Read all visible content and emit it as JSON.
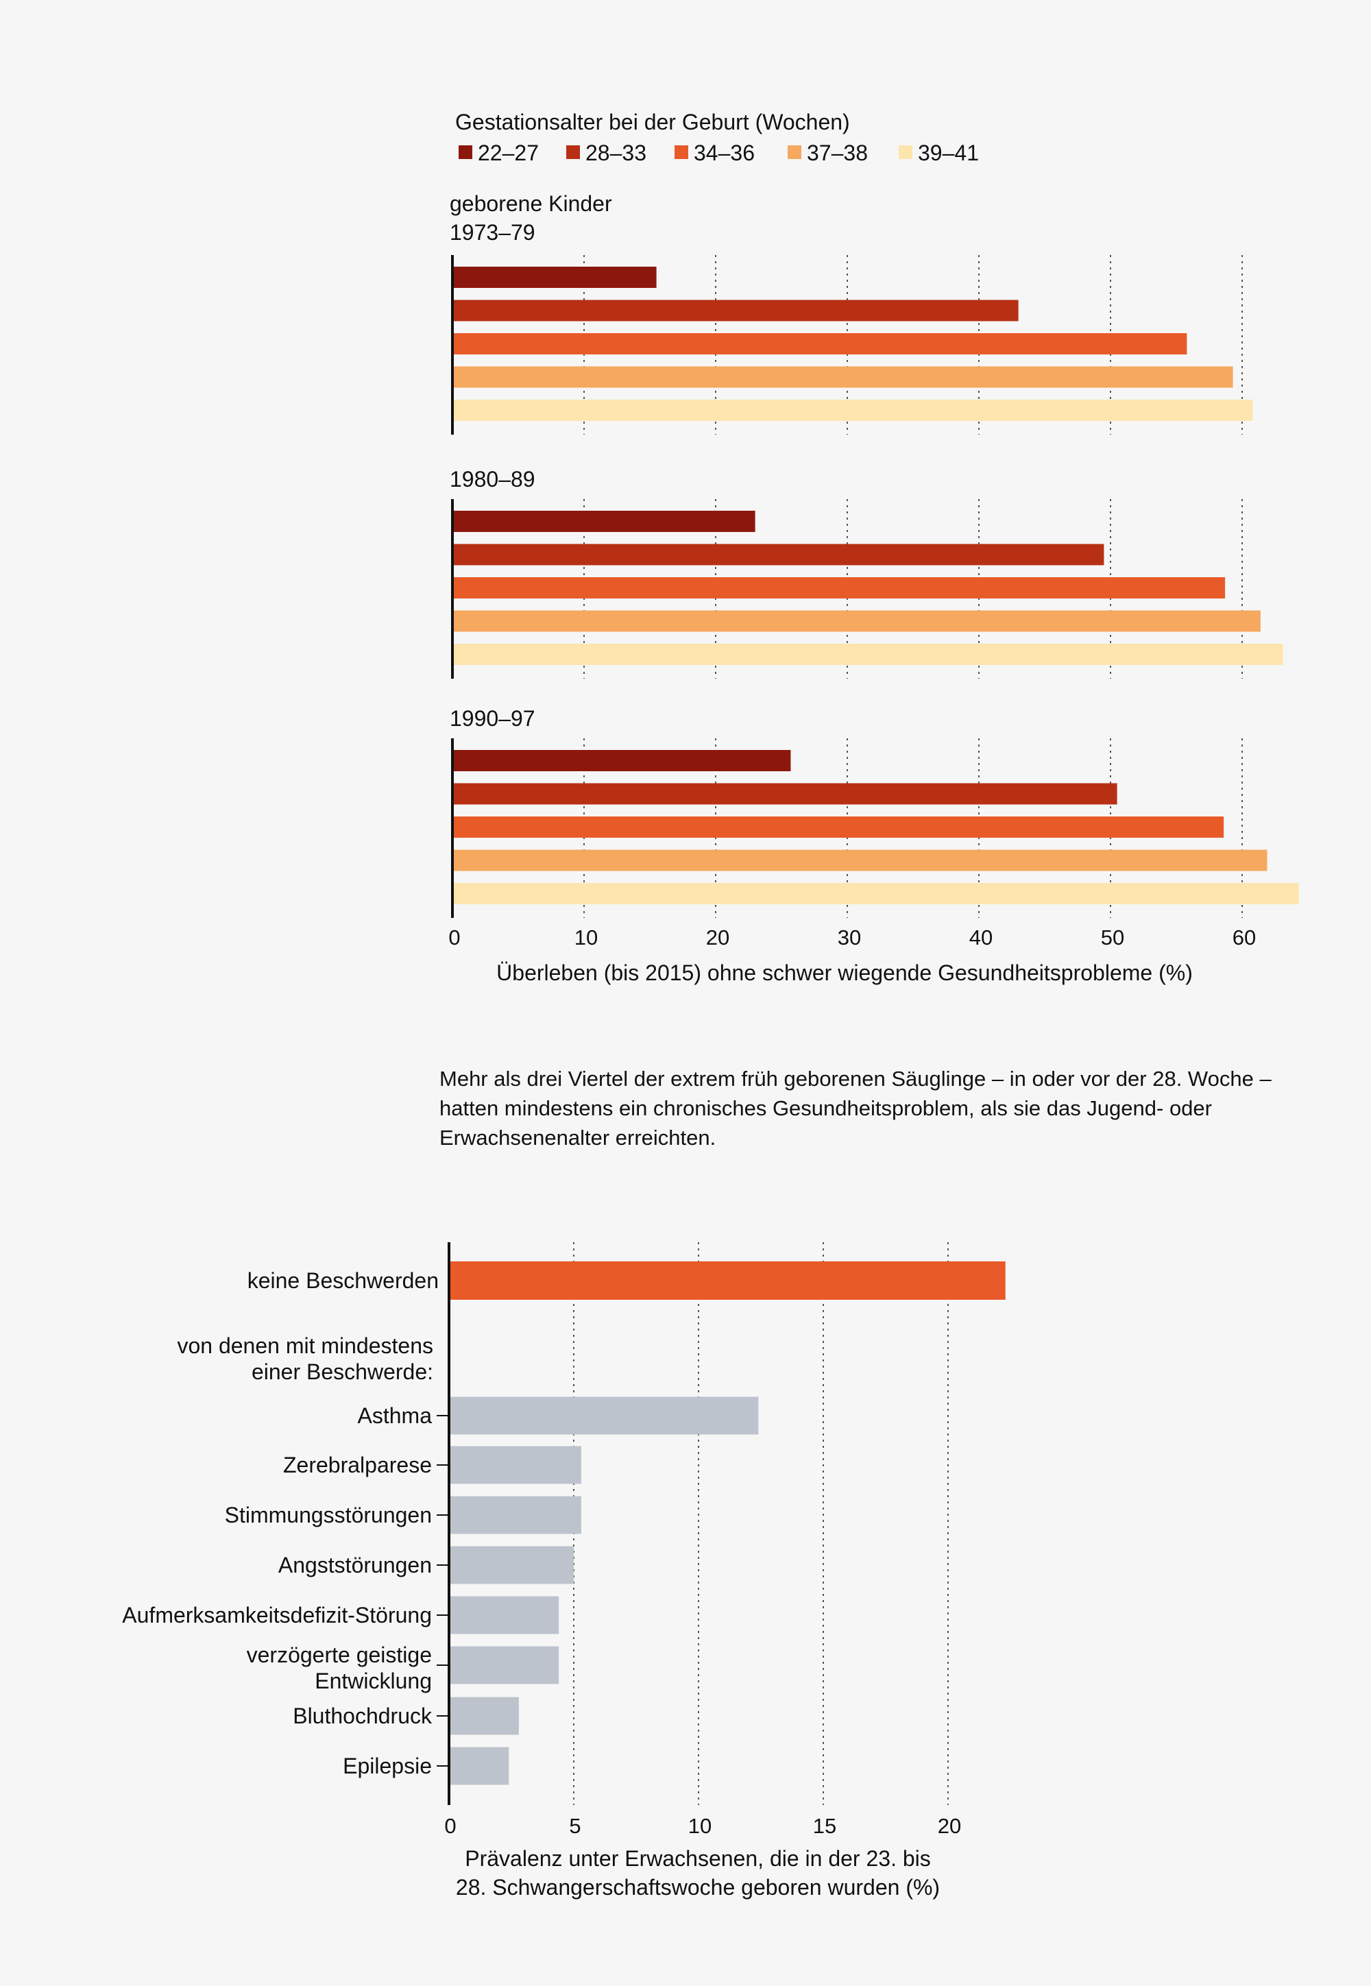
{
  "chart_data": [
    {
      "type": "bar",
      "orientation": "horizontal",
      "title": "",
      "legend_title": "Gestationsalter bei der Geburt (Wochen)",
      "legend_position": "top-left",
      "series": [
        {
          "name": "22–27",
          "color": "#8c170c"
        },
        {
          "name": "28–33",
          "color": "#b83014"
        },
        {
          "name": "34–36",
          "color": "#e85a28"
        },
        {
          "name": "37–38",
          "color": "#f6a85f"
        },
        {
          "name": "39–41",
          "color": "#fde5ad"
        }
      ],
      "panel_caption": "geborene Kinder",
      "panels": [
        {
          "label": "1973–79",
          "values": [
            15.5,
            43.0,
            55.8,
            59.3,
            60.8
          ]
        },
        {
          "label": "1980–89",
          "values": [
            23.0,
            49.5,
            58.7,
            61.4,
            63.1
          ]
        },
        {
          "label": "1990–97",
          "values": [
            25.7,
            50.5,
            58.6,
            61.9,
            64.3
          ]
        }
      ],
      "xlabel": "Überleben (bis 2015) ohne schwer wiegende Gesundheitsprobleme (%)",
      "ylabel": "",
      "xlim": [
        0,
        64.5
      ],
      "xticks": [
        0,
        10,
        20,
        30,
        40,
        50,
        60
      ],
      "grid": "dotted vertical"
    },
    {
      "type": "bar",
      "orientation": "horizontal",
      "title": "",
      "categories": [
        "keine Beschwerden",
        "Asthma",
        "Zerebralparese",
        "Stimmungsstörungen",
        "Angststörungen",
        "Aufmerksamkeitsdefizit-Störung",
        "verzögerte geistige Entwicklung",
        "Bluthochdruck",
        "Epilepsie"
      ],
      "category_lines": [
        [
          "keine Beschwerden"
        ],
        [
          "Asthma"
        ],
        [
          "Zerebralparese"
        ],
        [
          "Stimmungsstörungen"
        ],
        [
          "Angststörungen"
        ],
        [
          "Aufmerksamkeitsdefizit-Störung"
        ],
        [
          "verzögerte geistige",
          "Entwicklung"
        ],
        [
          "Bluthochdruck"
        ],
        [
          "Epilepsie"
        ]
      ],
      "values": [
        22.3,
        12.4,
        5.3,
        5.3,
        5.0,
        4.4,
        4.4,
        2.8,
        2.4
      ],
      "bar_colors": [
        "#e85a28",
        "#bdc3cc",
        "#bdc3cc",
        "#bdc3cc",
        "#bdc3cc",
        "#bdc3cc",
        "#bdc3cc",
        "#bdc3cc",
        "#bdc3cc"
      ],
      "group_label": [
        "von denen mit mindestens",
        "einer Beschwerde:"
      ],
      "xlabel": [
        "Prävalenz unter Erwachsenen, die in der 23. bis",
        "28. Schwangerschaftswoche geboren wurden (%)"
      ],
      "ylabel": "",
      "xlim": [
        0,
        22.3
      ],
      "xticks": [
        0,
        5,
        10,
        15,
        20
      ],
      "grid": "dotted vertical"
    }
  ],
  "note": {
    "text": "Mehr als drei Viertel der extrem früh geborenen Säuglinge – in oder vor der 28. Woche – hatten mindestens ein chronisches Gesundheitsproblem, als sie das Jugend- oder Erwachsenenalter erreichten."
  },
  "colors": {
    "background": "#f6f6f6",
    "axis": "#111111",
    "grid": "#555555",
    "text": "#111111"
  }
}
